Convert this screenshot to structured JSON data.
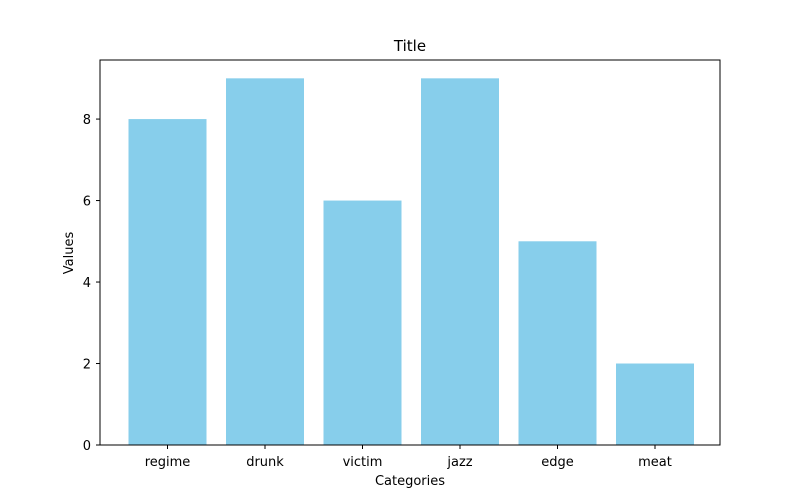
{
  "chart_data": {
    "type": "bar",
    "title": "Title",
    "xlabel": "Categories",
    "ylabel": "Values",
    "categories": [
      "regime",
      "drunk",
      "victim",
      "jazz",
      "edge",
      "meat"
    ],
    "values": [
      8,
      9,
      6,
      9,
      5,
      2
    ],
    "ylim": [
      0,
      9.45
    ],
    "yticks": [
      0,
      2,
      4,
      6,
      8
    ],
    "grid": false,
    "legend": "none",
    "bar_color": "#87CEEB"
  }
}
